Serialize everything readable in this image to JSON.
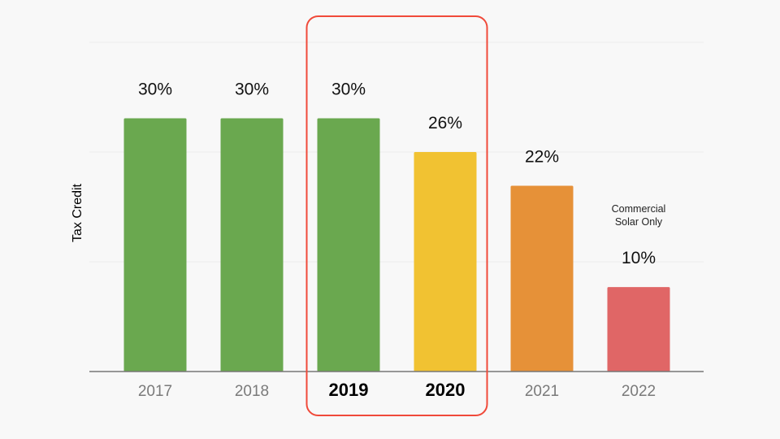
{
  "chart_data": {
    "type": "bar",
    "ylabel": "Tax Credit",
    "xlabel": "",
    "categories": [
      "2017",
      "2018",
      "2019",
      "2020",
      "2021",
      "2022"
    ],
    "values": [
      30,
      30,
      30,
      26,
      22,
      10
    ],
    "value_labels": [
      "30%",
      "30%",
      "30%",
      "26%",
      "22%",
      "10%"
    ],
    "colors": [
      "#6aa84f",
      "#6aa84f",
      "#6aa84f",
      "#f1c232",
      "#e69138",
      "#e06666"
    ],
    "ylim": [
      0,
      39
    ],
    "grid": true,
    "emphasized_categories": [
      "2019",
      "2020"
    ],
    "highlight": {
      "categories": [
        "2019",
        "2020"
      ],
      "color": "#f04a3a"
    },
    "annotations": [
      {
        "category": "2022",
        "lines": [
          "Commercial",
          "Solar Only"
        ]
      }
    ]
  }
}
